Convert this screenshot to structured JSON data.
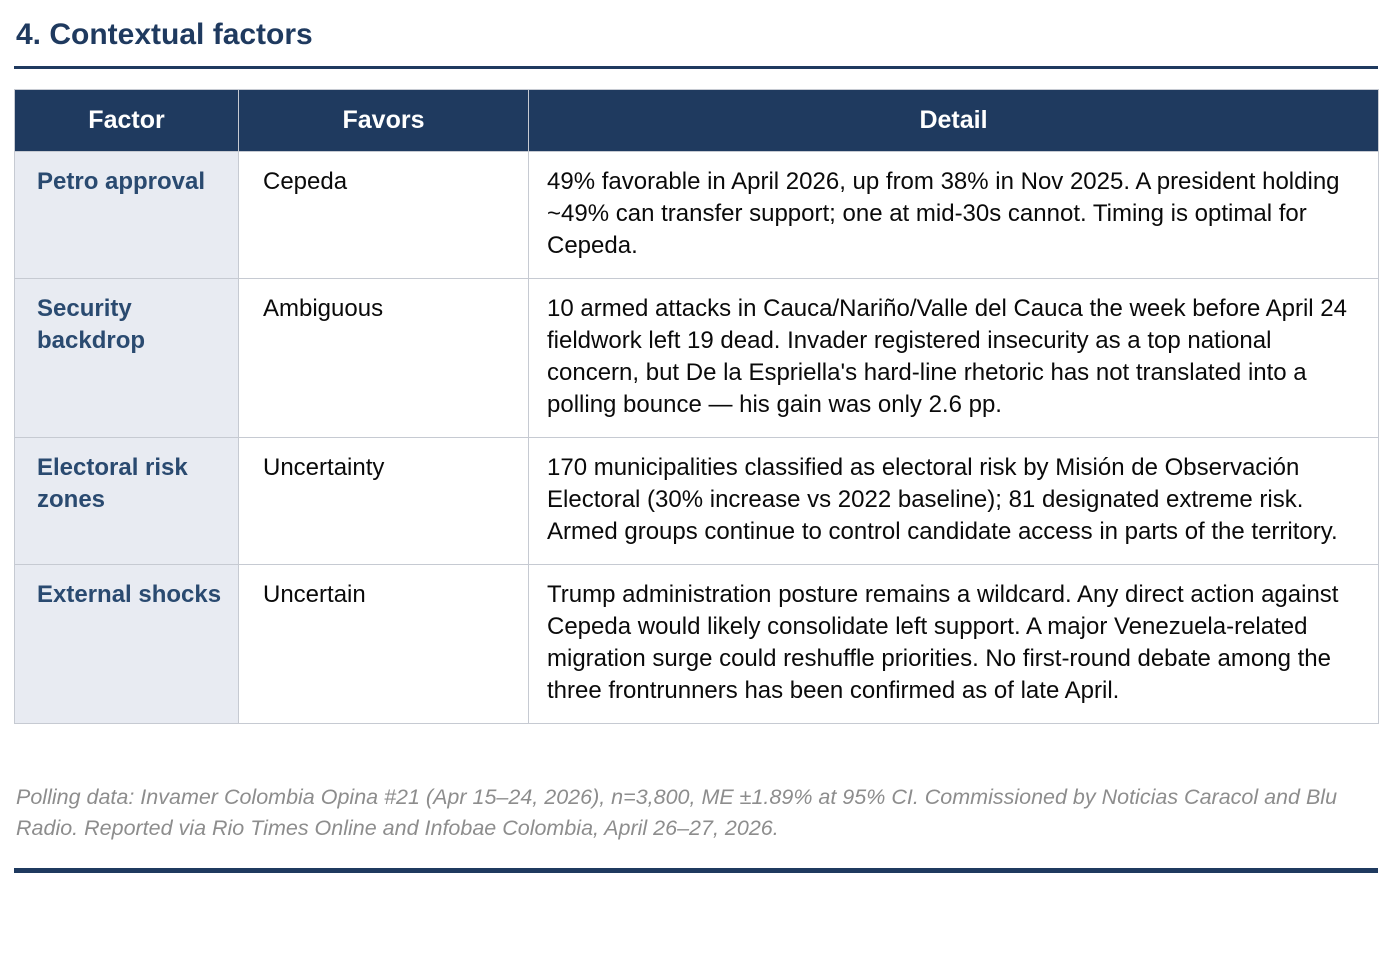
{
  "page": {
    "title": "4. Contextual factors"
  },
  "colors": {
    "accent_navy": "#1f3a5f",
    "factor_text_navy": "#2a4a70",
    "factor_cell_bg": "#e8ebf2",
    "table_border": "#c6cad2",
    "footer_gray": "#8d8d8d"
  },
  "table": {
    "headers": [
      "Factor",
      "Favors",
      "Detail"
    ],
    "rows": [
      {
        "factor": "Petro approval",
        "favors": "Cepeda",
        "detail": "49% favorable in April 2026, up from 38% in Nov 2025. A president holding ~49% can transfer support; one at mid-30s cannot. Timing is optimal for Cepeda."
      },
      {
        "factor": "Security backdrop",
        "favors": "Ambiguous",
        "detail": "10 armed attacks in Cauca/Nariño/Valle del Cauca the week before April 24 fieldwork left 19 dead. Invader registered insecurity as a top national concern, but De la Espriella's hard-line rhetoric has not translated into a polling bounce — his gain was only 2.6 pp."
      },
      {
        "factor": "Electoral risk zones",
        "favors": "Uncertainty",
        "detail": "170 municipalities classified as electoral risk by Misión de Observación Electoral (30% increase vs 2022 baseline); 81 designated extreme risk. Armed groups continue to control candidate access in parts of the territory."
      },
      {
        "factor": "External shocks",
        "favors": "Uncertain",
        "detail": "Trump administration posture remains a wildcard. Any direct action against Cepeda would likely consolidate left support. A major Venezuela-related migration surge could reshuffle priorities. No first-round debate among the three frontrunners has been confirmed as of late April."
      }
    ]
  },
  "footer": {
    "note": "Polling data: Invamer Colombia Opina #21 (Apr 15–24, 2026), n=3,800, ME ±1.89% at 95% CI. Commissioned by Noticias Caracol and Blu Radio. Reported via Rio Times Online and Infobae Colombia, April 26–27, 2026."
  }
}
